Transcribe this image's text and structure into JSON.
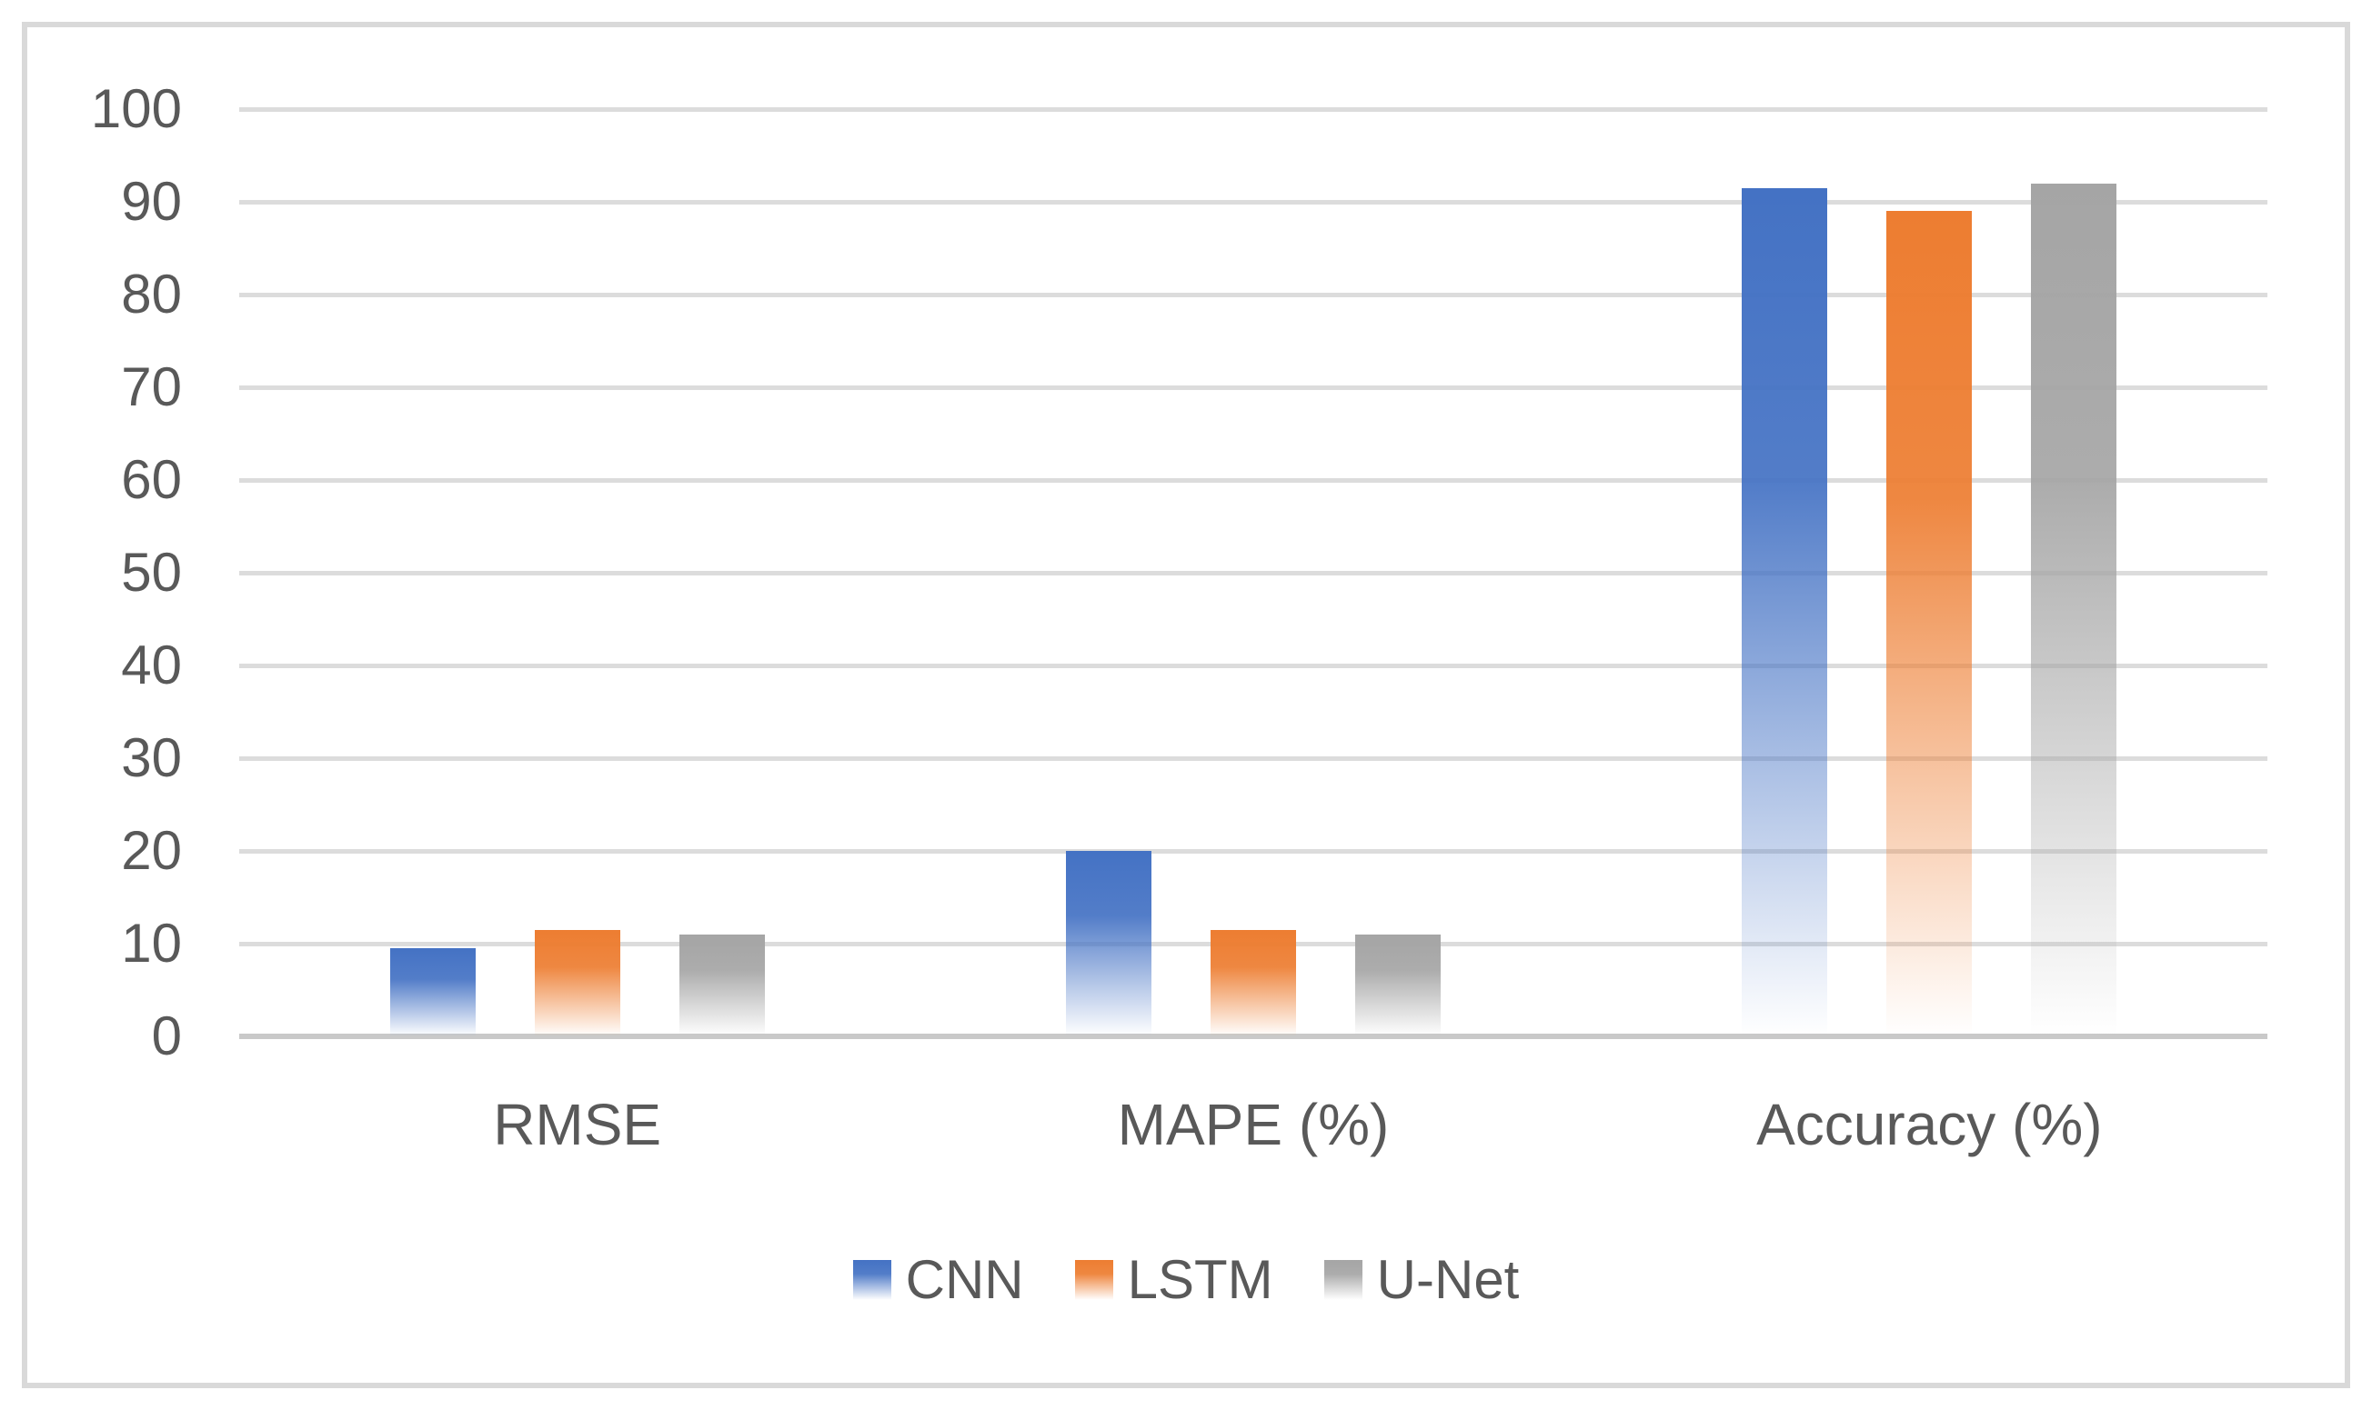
{
  "chart_data": {
    "type": "bar",
    "title": "",
    "xlabel": "",
    "ylabel": "",
    "categories": [
      "RMSE",
      "MAPE (%)",
      "Accuracy (%)"
    ],
    "series": [
      {
        "name": "CNN",
        "color": "#4472C4",
        "values": [
          9.5,
          20,
          91.5
        ]
      },
      {
        "name": "LSTM",
        "color": "#ED7D31",
        "values": [
          11.5,
          11.5,
          89
        ]
      },
      {
        "name": "U-Net",
        "color": "#A5A5A5",
        "values": [
          11,
          11,
          92
        ]
      }
    ],
    "y_axis": {
      "min": 0,
      "max": 100,
      "step": 10,
      "tick_labels": [
        "0",
        "10",
        "20",
        "30",
        "40",
        "50",
        "60",
        "70",
        "80",
        "90",
        "100"
      ]
    },
    "grid": true,
    "legend": {
      "position": "bottom",
      "entries": [
        "CNN",
        "LSTM",
        "U-Net"
      ]
    }
  },
  "style": {
    "background": "#FFFFFF",
    "text_color": "#595959",
    "gridline_color": "#DCDCDC",
    "axis_line_color": "#C9C9C9",
    "border_color": "#D9D9D9"
  }
}
